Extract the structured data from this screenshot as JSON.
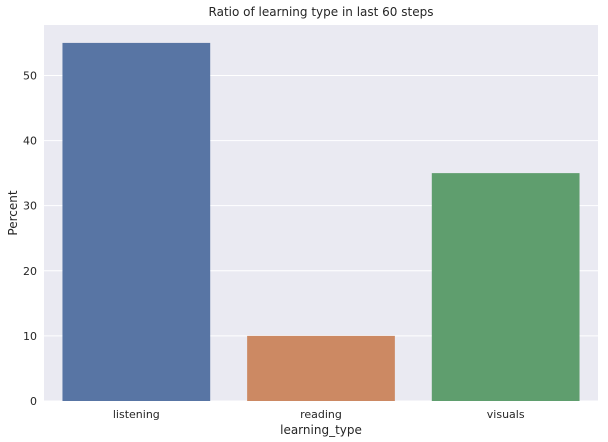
{
  "chart_data": {
    "type": "bar",
    "title": "Ratio of learning type in last 60 steps",
    "xlabel": "learning_type",
    "ylabel": "Percent",
    "categories": [
      "listening",
      "reading",
      "visuals"
    ],
    "values": [
      55,
      10,
      35
    ],
    "colors": [
      "#5875a4",
      "#cc8963",
      "#5f9e6e"
    ],
    "ylim": [
      0,
      57.75
    ],
    "yticks": [
      0,
      10,
      20,
      30,
      40,
      50
    ],
    "grid": true,
    "background": "#eaeaf2"
  }
}
